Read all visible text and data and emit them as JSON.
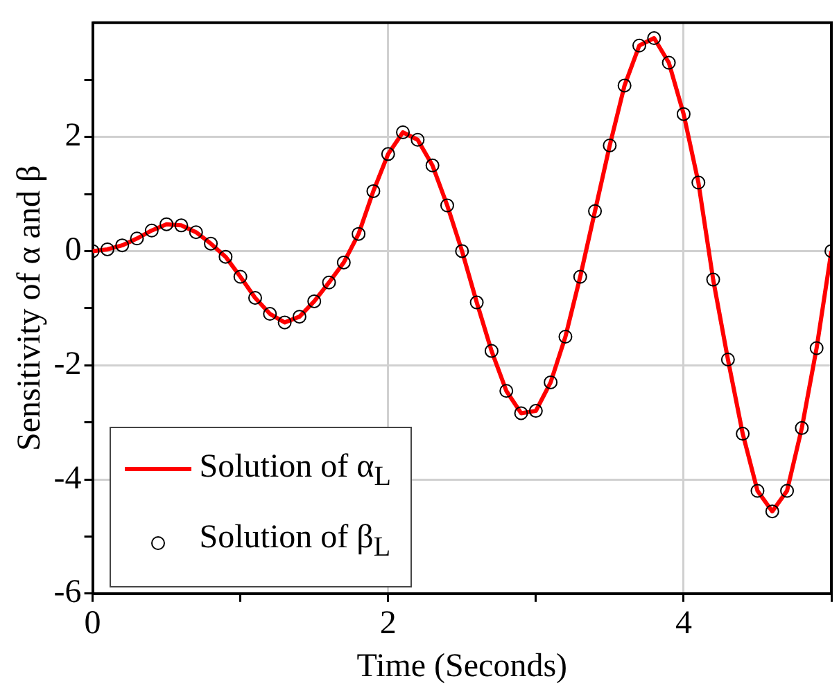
{
  "chart_data": {
    "type": "line",
    "xlabel": "Time (Seconds)",
    "ylabel": "Sensitivity of α and β",
    "x": [
      0,
      0.1,
      0.2,
      0.3,
      0.4,
      0.5,
      0.6,
      0.7,
      0.8,
      0.9,
      1.0,
      1.1,
      1.2,
      1.3,
      1.4,
      1.5,
      1.6,
      1.7,
      1.8,
      1.9,
      2.0,
      2.1,
      2.2,
      2.3,
      2.4,
      2.5,
      2.6,
      2.7,
      2.8,
      2.9,
      3.0,
      3.1,
      3.2,
      3.3,
      3.4,
      3.5,
      3.6,
      3.7,
      3.8,
      3.9,
      4.0,
      4.1,
      4.2,
      4.3,
      4.4,
      4.5,
      4.6,
      4.7,
      4.8,
      4.9,
      5.0
    ],
    "series": [
      {
        "name": "Solution of α$_{L}$",
        "color": "#ff0000",
        "marker": "none",
        "line_style": "solid",
        "values": [
          0,
          0.03,
          0.1,
          0.22,
          0.36,
          0.47,
          0.45,
          0.33,
          0.13,
          -0.1,
          -0.45,
          -0.82,
          -1.1,
          -1.25,
          -1.15,
          -0.88,
          -0.55,
          -0.2,
          0.3,
          1.05,
          1.7,
          2.08,
          1.95,
          1.5,
          0.8,
          0.0,
          -0.9,
          -1.75,
          -2.45,
          -2.84,
          -2.8,
          -2.3,
          -1.5,
          -0.45,
          0.7,
          1.85,
          2.9,
          3.6,
          3.73,
          3.3,
          2.4,
          1.2,
          -0.5,
          -1.9,
          -3.2,
          -4.2,
          -4.56,
          -4.2,
          -3.1,
          -1.7,
          0.0
        ]
      },
      {
        "name": "Solution of β$_{L}$",
        "type": "scatter",
        "color": "#000000",
        "marker": "circle",
        "values": [
          0,
          0.03,
          0.1,
          0.22,
          0.36,
          0.47,
          0.45,
          0.33,
          0.13,
          -0.1,
          -0.45,
          -0.82,
          -1.1,
          -1.25,
          -1.15,
          -0.88,
          -0.55,
          -0.2,
          0.3,
          1.05,
          1.7,
          2.08,
          1.95,
          1.5,
          0.8,
          0.0,
          -0.9,
          -1.75,
          -2.45,
          -2.84,
          -2.8,
          -2.3,
          -1.5,
          -0.45,
          0.7,
          1.85,
          2.9,
          3.6,
          3.73,
          3.3,
          2.4,
          1.2,
          -0.5,
          -1.9,
          -3.2,
          -4.2,
          -4.56,
          -4.2,
          -3.1,
          -1.7,
          0.0
        ]
      }
    ],
    "xlim": [
      0,
      5
    ],
    "xticks": [
      0,
      {
        "value": 1,
        "label": null
      },
      2,
      {
        "value": 3,
        "label": null
      },
      4,
      {
        "value": 5,
        "label": null
      }
    ],
    "ylim": [
      -6,
      4
    ],
    "yticks": [
      -6,
      {
        "value": -5,
        "label": null
      },
      -4,
      {
        "value": -3,
        "label": null
      },
      -2,
      {
        "value": -1,
        "label": null
      },
      0,
      {
        "value": 1,
        "label": null
      },
      2,
      {
        "value": 3,
        "label": null
      }
    ],
    "grid": true,
    "legend": "bottom left"
  }
}
